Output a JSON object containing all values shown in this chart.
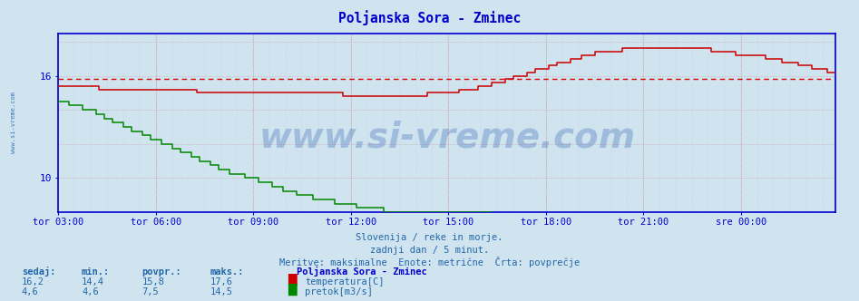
{
  "title": "Poljanska Sora - Zminec",
  "title_color": "#0000cc",
  "bg_color": "#d0e4f0",
  "axis_color": "#0000cc",
  "temp_color": "#cc0000",
  "flow_color": "#008800",
  "dashed_temp_color": "#dd0000",
  "dashed_flow_color": "#00bb00",
  "grid_v_color": "#cc8888",
  "grid_h_color": "#cc8888",
  "watermark_color": "#2255aa",
  "watermark_alpha": 0.28,
  "watermark_text": "www.si-vreme.com",
  "watermark_fontsize": 28,
  "subtitle1": "Slovenija / reke in morje.",
  "subtitle2": "zadnji dan / 5 minut.",
  "subtitle3": "Meritve: maksimalne  Enote: metrične  Črta: povprečje",
  "subtitle_color": "#2266aa",
  "left_label": "www.si-vreme.com",
  "left_label_color": "#2266aa",
  "temp_avg": 15.8,
  "flow_avg": 7.5,
  "ylim_temp": [
    8.0,
    18.5
  ],
  "yticks_temp": [
    10,
    16
  ],
  "ylim_flow": [
    0,
    18.5
  ],
  "time_labels": [
    "tor 03:00",
    "tor 06:00",
    "tor 09:00",
    "tor 12:00",
    "tor 15:00",
    "tor 18:00",
    "tor 21:00",
    "sre 00:00"
  ],
  "n_points": 288,
  "figsize": [
    9.47,
    3.32
  ],
  "dpi": 100,
  "legend_title": "Poljanska Sora - Zminec",
  "stats_headers": [
    "sedaj:",
    "min.:",
    "povpr.:",
    "maks.:"
  ],
  "stats_temp": [
    "16,2",
    "14,4",
    "15,8",
    "17,6"
  ],
  "stats_flow": [
    "4,6",
    "4,6",
    "7,5",
    "14,5"
  ],
  "label_temp": "temperatura[C]",
  "label_flow": "pretok[m3/s]"
}
